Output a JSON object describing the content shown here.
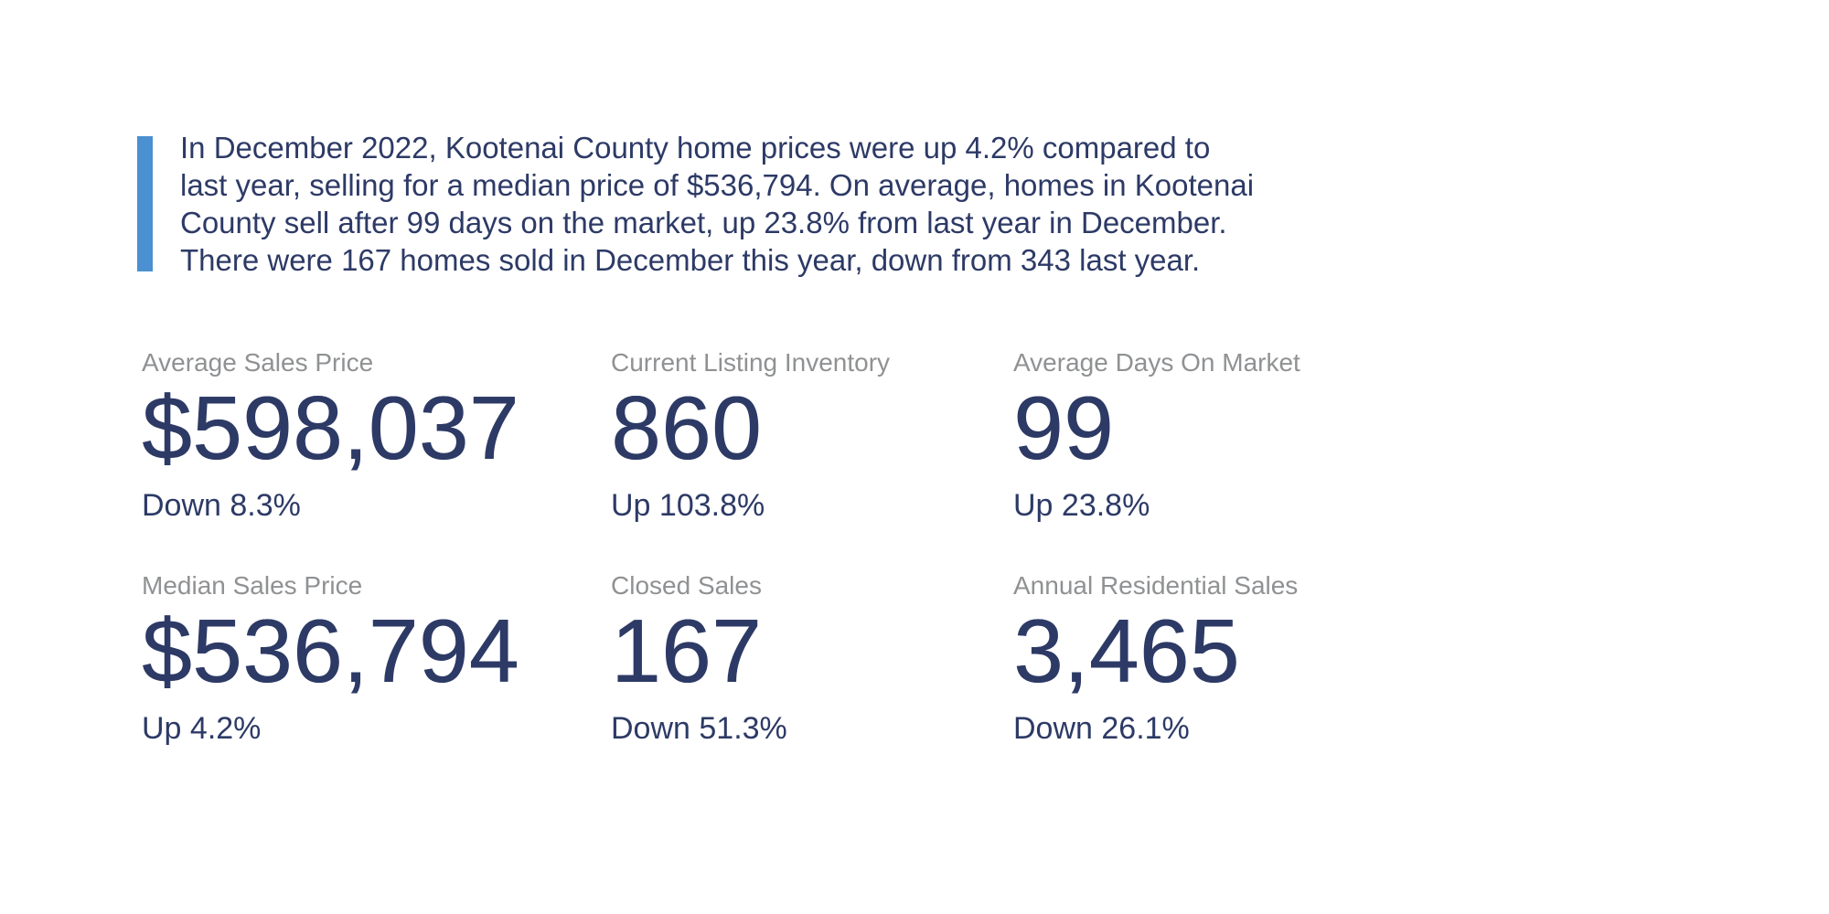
{
  "summary": {
    "lines": [
      "In December 2022, Kootenai County home prices were up 4.2% compared to",
      "last year, selling for a median price of $536,794. On average, homes in Kootenai",
      "County sell after 99 days on the market, up 23.8% from last year in December.",
      "There were 167 homes sold in December this year, down from 343 last year."
    ]
  },
  "stats": [
    {
      "label": "Average Sales Price",
      "value": "$598,037",
      "change": "Down 8.3%"
    },
    {
      "label": "Current Listing Inventory",
      "value": "860",
      "change": "Up 103.8%"
    },
    {
      "label": "Average Days On Market",
      "value": "99",
      "change": "Up 23.8%"
    },
    {
      "label": "Median Sales Price",
      "value": "$536,794",
      "change": "Up 4.2%"
    },
    {
      "label": "Closed Sales",
      "value": "167",
      "change": "Down 51.3%"
    },
    {
      "label": "Annual Residential Sales",
      "value": "3,465",
      "change": "Down 26.1%"
    }
  ],
  "colors": {
    "accent_bar": "#4b90d0",
    "navy_text": "#2d3a66",
    "label_grey": "#8f9193",
    "background": "#ffffff"
  }
}
